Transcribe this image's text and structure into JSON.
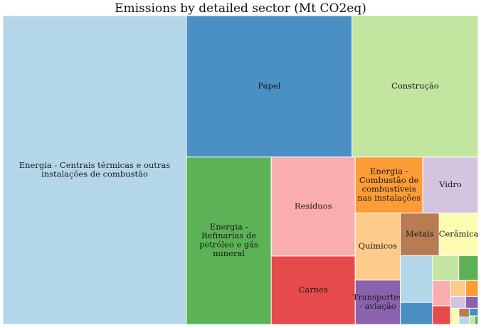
{
  "chart_data": {
    "type": "treemap",
    "title": "Emissions by detailed sector (Mt CO2eq)",
    "unit": "Mt CO2eq",
    "items": [
      {
        "label": "Energia - Centrais térmicas e outras instalações de combustão",
        "value": 37.5,
        "color": "#b3d7e8",
        "labeled": true
      },
      {
        "label": "Papel",
        "value": 15.5,
        "color": "#4a90c4",
        "labeled": true
      },
      {
        "label": "Construção",
        "value": 11.8,
        "color": "#c2e5a0",
        "labeled": true
      },
      {
        "label": "Energia - Refinarias de petróleo e gás mineral",
        "value": 9.4,
        "color": "#5cb356",
        "labeled": true
      },
      {
        "label": "Resíduos",
        "value": 5.5,
        "color": "#f9adad",
        "labeled": true
      },
      {
        "label": "Carnes",
        "value": 3.8,
        "color": "#e74a4b",
        "labeled": true
      },
      {
        "label": "Químicos",
        "value": 2.0,
        "color": "#fdcb8c",
        "labeled": true
      },
      {
        "label": "Energia - Combustão de combustíveis nas instalações",
        "value": 2.5,
        "color": "#fd9c35",
        "labeled": true
      },
      {
        "label": "Vidro",
        "value": 2.05,
        "color": "#d4c4e0",
        "labeled": true
      },
      {
        "label": "Metais",
        "value": 1.1,
        "color": "#b87b52",
        "labeled": true
      },
      {
        "label": "Transportes - aviação",
        "value": 1.32,
        "color": "#8a62ae",
        "labeled": true
      },
      {
        "label": "Cerâmica",
        "value": 1.1,
        "color": "#fdfcb0",
        "labeled": true
      },
      {
        "label": "",
        "value": 1.0,
        "color": "#b3d7e8",
        "labeled": false
      },
      {
        "label": "",
        "value": 0.47,
        "color": "#4a90c4",
        "labeled": false
      },
      {
        "label": "",
        "value": 0.43,
        "color": "#c2e5a0",
        "labeled": false
      },
      {
        "label": "",
        "value": 0.32,
        "color": "#5cb356",
        "labeled": false
      },
      {
        "label": "",
        "value": 0.3,
        "color": "#f9adad",
        "labeled": false
      },
      {
        "label": "",
        "value": 0.22,
        "color": "#e74a4b",
        "labeled": false
      },
      {
        "label": "",
        "value": 0.16,
        "color": "#fdcb8c",
        "labeled": false
      },
      {
        "label": "",
        "value": 0.13,
        "color": "#fd9c35",
        "labeled": false
      },
      {
        "label": "",
        "value": 0.12,
        "color": "#d4c4e0",
        "labeled": false
      },
      {
        "label": "",
        "value": 0.1,
        "color": "#8a62ae",
        "labeled": false
      },
      {
        "label": "",
        "value": 0.09,
        "color": "#fdfcb0",
        "labeled": false
      },
      {
        "label": "",
        "value": 0.06,
        "color": "#b87b52",
        "labeled": false
      },
      {
        "label": "",
        "value": 0.05,
        "color": "#b3d7e8",
        "labeled": false
      },
      {
        "label": "",
        "value": 0.045,
        "color": "#4a90c4",
        "labeled": false
      },
      {
        "label": "",
        "value": 0.03,
        "color": "#c2e5a0",
        "labeled": false
      },
      {
        "label": "",
        "value": 0.02,
        "color": "#5cb356",
        "labeled": false
      }
    ]
  }
}
